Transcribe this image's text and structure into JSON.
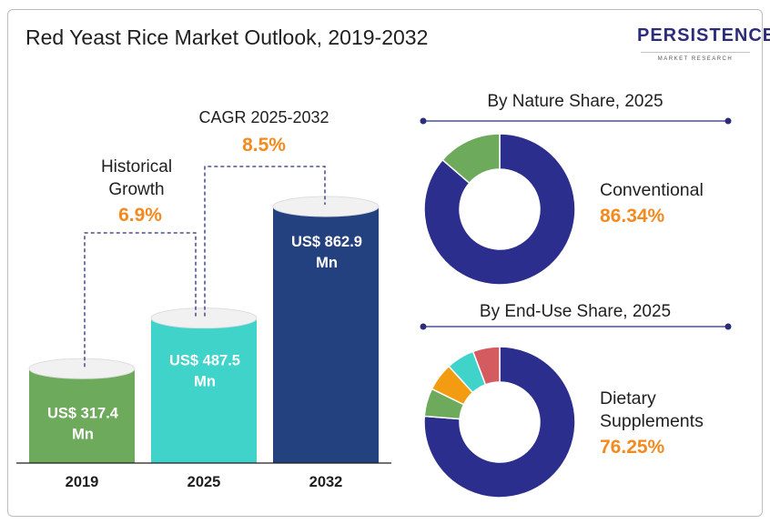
{
  "title": "Red Yeast Rice Market Outlook, 2019-2032",
  "logo": {
    "name": "PERSISTENCE",
    "tagline": "MARKET RESEARCH"
  },
  "colors": {
    "bar_2019": "#6daa5c",
    "bar_2025": "#3fd3c9",
    "bar_2032": "#23407f",
    "accent_orange": "#f28a1f",
    "navy": "#2b2e8c",
    "green": "#6daa5c",
    "orange": "#f39c12",
    "teal": "#3fd3c9",
    "red": "#d45b5f"
  },
  "annotations": {
    "historical_label_1": "Historical",
    "historical_label_2": "Growth",
    "historical_value": "6.9%",
    "cagr_label": "CAGR 2025-2032",
    "cagr_value": "8.5%"
  },
  "chart_data": [
    {
      "type": "bar",
      "categories": [
        "2019",
        "2025",
        "2032"
      ],
      "values": [
        317.4,
        487.5,
        862.9
      ],
      "value_labels": [
        [
          "US$ 317.4",
          "Mn"
        ],
        [
          "US$ 487.5",
          "Mn"
        ],
        [
          "US$ 862.9",
          "Mn"
        ]
      ],
      "unit": "US$ Mn"
    },
    {
      "type": "pie",
      "title": "By Nature Share, 2025",
      "highlight_label": [
        "Conventional"
      ],
      "highlight_value": "86.34%",
      "slices": [
        {
          "value": 86.34,
          "color": "#2b2e8c"
        },
        {
          "value": 13.66,
          "color": "#6daa5c"
        }
      ]
    },
    {
      "type": "pie",
      "title": "By End-Use Share, 2025",
      "highlight_label": [
        "Dietary",
        "Supplements"
      ],
      "highlight_value": "76.25%",
      "slices": [
        {
          "value": 76.25,
          "color": "#2b2e8c"
        },
        {
          "value": 6.0,
          "color": "#6daa5c"
        },
        {
          "value": 6.0,
          "color": "#f39c12"
        },
        {
          "value": 6.0,
          "color": "#3fd3c9"
        },
        {
          "value": 5.75,
          "color": "#d45b5f"
        }
      ]
    }
  ]
}
